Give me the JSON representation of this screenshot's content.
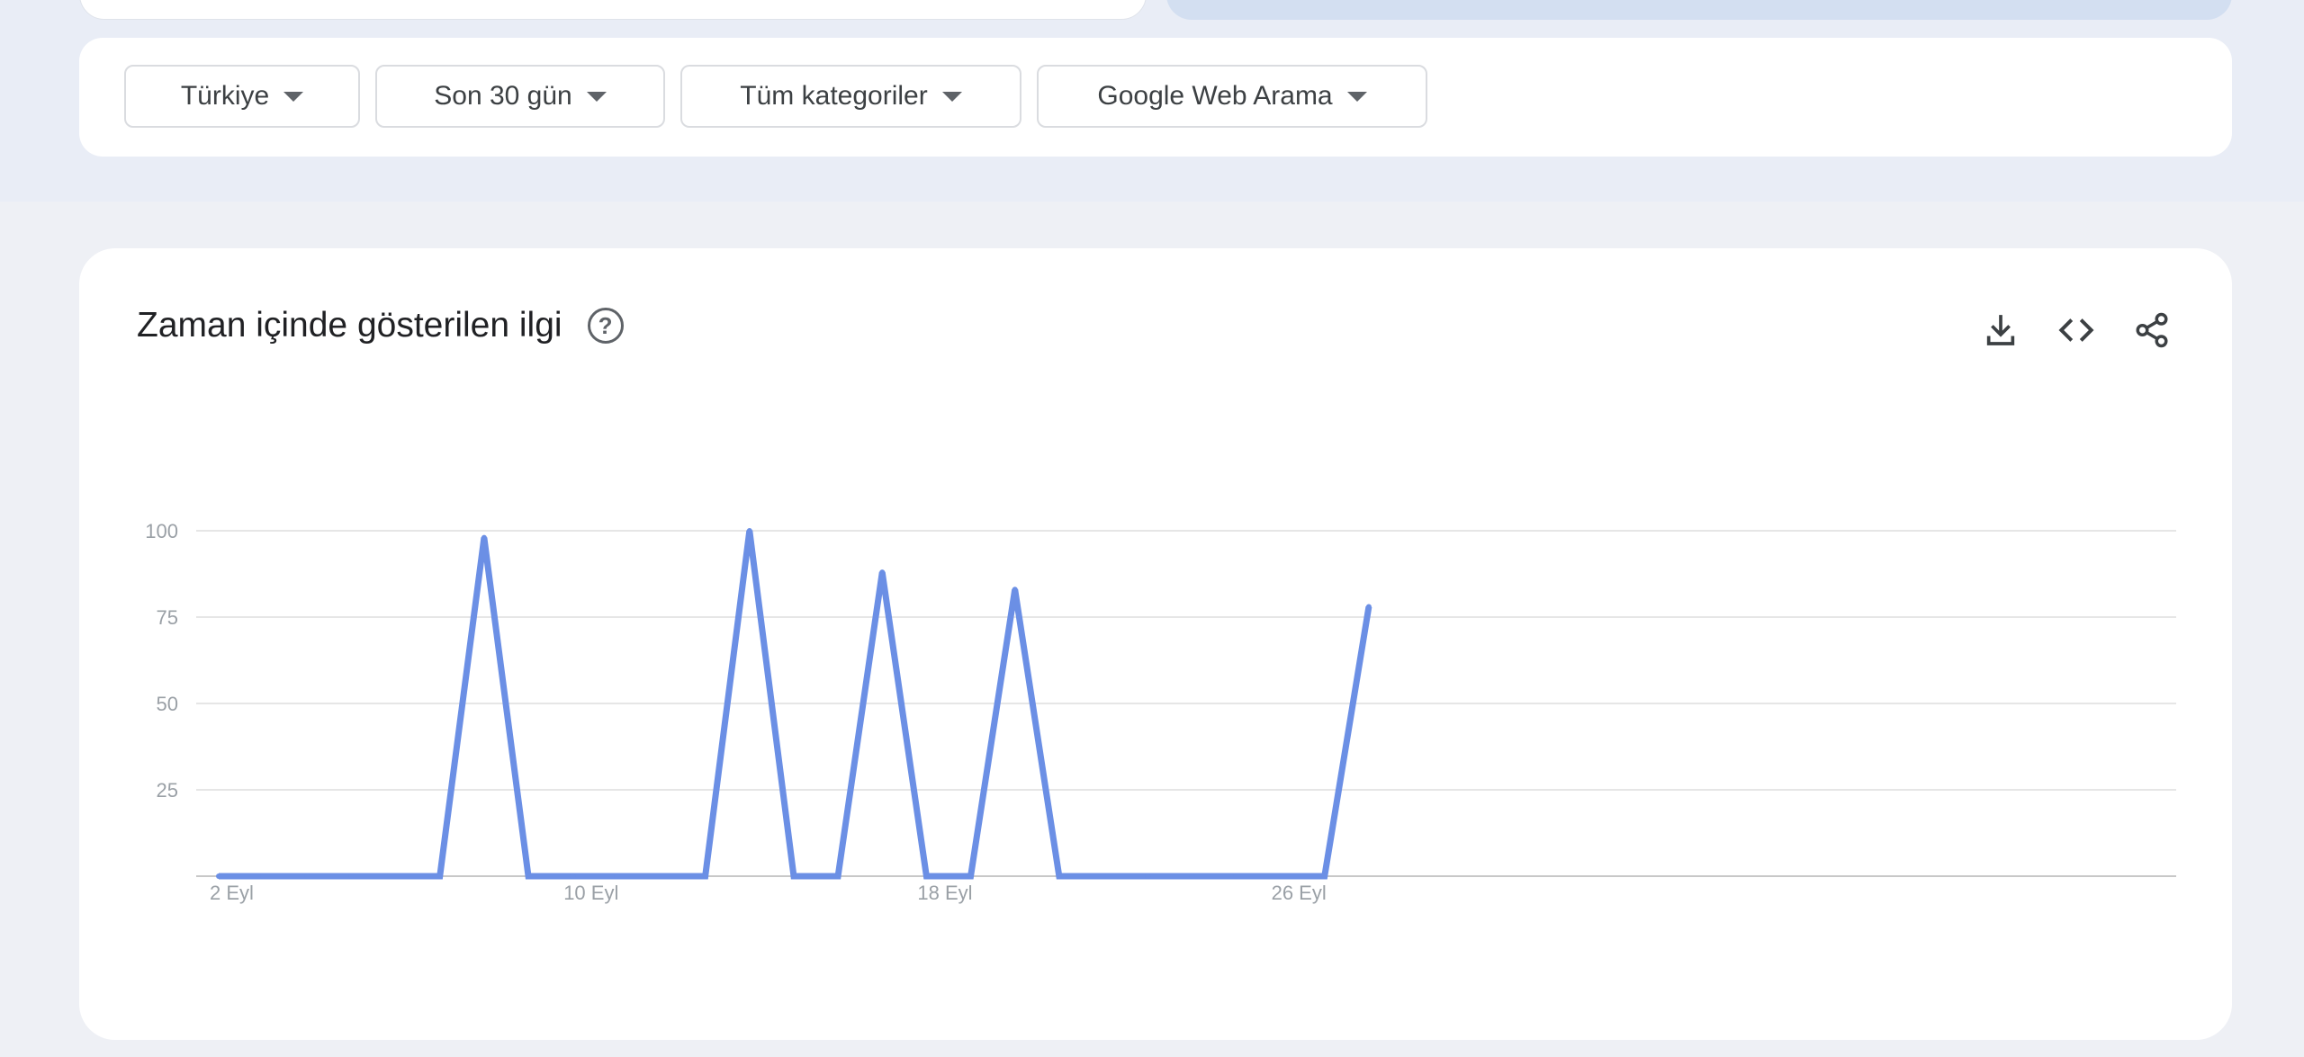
{
  "filters": [
    {
      "label": "Türkiye"
    },
    {
      "label": "Son 30 gün"
    },
    {
      "label": "Tüm kategoriler"
    },
    {
      "label": "Google Web Arama"
    }
  ],
  "chart_title": "Zaman içinde gösterilen ilgi",
  "help_icon_glyph": "?",
  "icons": {
    "download": "download-icon",
    "embed": "embed-code-icon",
    "share": "share-icon",
    "help": "help-icon"
  },
  "colors": {
    "series": "#6b8fe5",
    "grid": "#e6e6e6",
    "axis": "#c8c8c8"
  },
  "chart_data": {
    "type": "line",
    "title": "Zaman içinde gösterilen ilgi",
    "xlabel": "",
    "ylabel": "",
    "ylim": [
      0,
      100
    ],
    "yticks": [
      25,
      50,
      75,
      100
    ],
    "x": [
      "2 Eyl",
      "3 Eyl",
      "4 Eyl",
      "5 Eyl",
      "6 Eyl",
      "7 Eyl",
      "8 Eyl",
      "9 Eyl",
      "10 Eyl",
      "11 Eyl",
      "12 Eyl",
      "13 Eyl",
      "14 Eyl",
      "15 Eyl",
      "16 Eyl",
      "17 Eyl",
      "18 Eyl",
      "19 Eyl",
      "20 Eyl",
      "21 Eyl",
      "22 Eyl",
      "23 Eyl",
      "24 Eyl",
      "25 Eyl",
      "26 Eyl",
      "27 Eyl",
      "28 Eyl"
    ],
    "xtick_labels": [
      "2 Eyl",
      "10 Eyl",
      "18 Eyl",
      "26 Eyl"
    ],
    "series": [
      {
        "values": [
          0,
          0,
          0,
          0,
          0,
          0,
          98,
          0,
          0,
          0,
          0,
          0,
          100,
          0,
          0,
          88,
          0,
          0,
          83,
          0,
          0,
          0,
          0,
          0,
          0,
          0,
          78
        ]
      }
    ],
    "grid": true,
    "legend": "none"
  }
}
